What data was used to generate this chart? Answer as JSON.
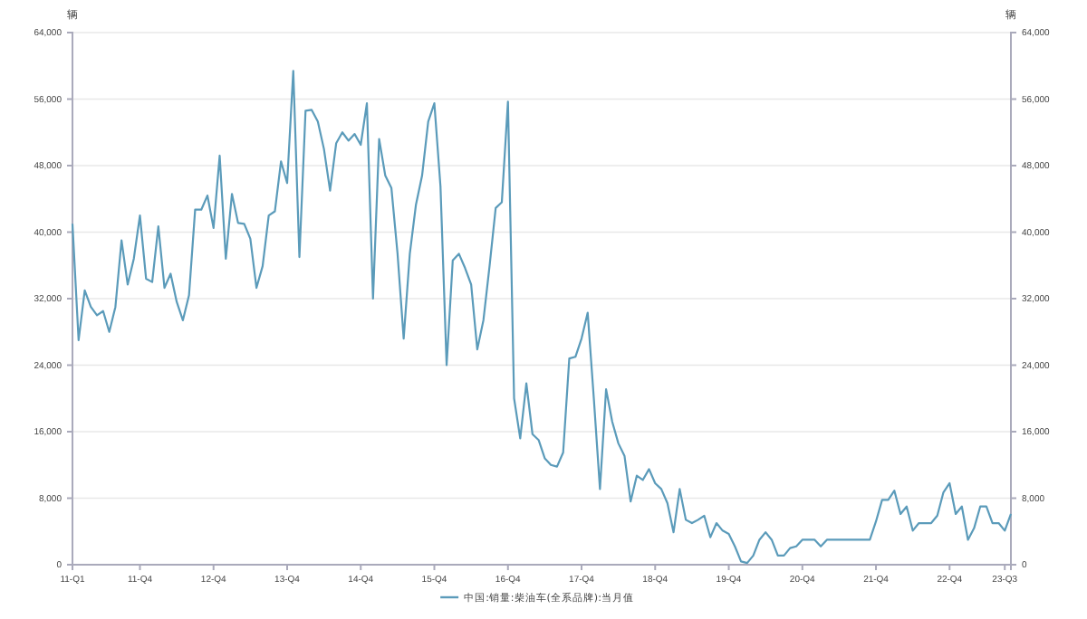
{
  "chart_data": {
    "type": "line",
    "categories": [
      "11-Q1",
      null,
      null,
      null,
      null,
      null,
      null,
      null,
      null,
      null,
      null,
      "11-Q4",
      null,
      null,
      null,
      null,
      null,
      null,
      null,
      null,
      null,
      null,
      null,
      "12-Q4",
      null,
      null,
      null,
      null,
      null,
      null,
      null,
      null,
      null,
      null,
      null,
      "13-Q4",
      null,
      null,
      null,
      null,
      null,
      null,
      null,
      null,
      null,
      null,
      null,
      "14-Q4",
      null,
      null,
      null,
      null,
      null,
      null,
      null,
      null,
      null,
      null,
      null,
      "15-Q4",
      null,
      null,
      null,
      null,
      null,
      null,
      null,
      null,
      null,
      null,
      null,
      "16-Q4",
      null,
      null,
      null,
      null,
      null,
      null,
      null,
      null,
      null,
      null,
      null,
      "17-Q4",
      null,
      null,
      null,
      null,
      null,
      null,
      null,
      null,
      null,
      null,
      null,
      "18-Q4",
      null,
      null,
      null,
      null,
      null,
      null,
      null,
      null,
      null,
      null,
      null,
      "19-Q4",
      null,
      null,
      null,
      null,
      null,
      null,
      null,
      null,
      null,
      null,
      null,
      "20-Q4",
      null,
      null,
      null,
      null,
      null,
      null,
      null,
      null,
      null,
      null,
      null,
      "21-Q4",
      null,
      null,
      null,
      null,
      null,
      null,
      null,
      null,
      null,
      null,
      null,
      "22-Q4",
      null,
      null,
      null,
      null,
      null,
      null,
      null,
      null,
      "23-Q3",
      null
    ],
    "series": [
      {
        "name": "中国:销量:柴油车(全系品牌):当月值",
        "color": "#5b9bba",
        "values": [
          41000,
          27000,
          33000,
          31000,
          30000,
          30500,
          28000,
          31000,
          39000,
          33700,
          36800,
          42000,
          34400,
          34000,
          40700,
          33300,
          35000,
          31600,
          29400,
          32400,
          42700,
          42700,
          44400,
          40500,
          49200,
          36800,
          44600,
          41100,
          41000,
          39200,
          33300,
          35900,
          42000,
          42500,
          48500,
          45900,
          59400,
          37000,
          54600,
          54700,
          53300,
          50000,
          45000,
          50700,
          52000,
          51000,
          51800,
          50500,
          55500,
          32000,
          51200,
          46800,
          45300,
          37400,
          27200,
          37400,
          43300,
          46800,
          53300,
          55500,
          45500,
          24000,
          36600,
          37400,
          35700,
          33700,
          25900,
          29400,
          35900,
          42900,
          43600,
          55700,
          20000,
          15200,
          21800,
          15700,
          15000,
          12800,
          12000,
          11800,
          13500,
          24800,
          25000,
          27200,
          30300,
          20000,
          9100,
          21100,
          17200,
          14600,
          13100,
          7600,
          10700,
          10200,
          11500,
          9800,
          9100,
          7400,
          3900,
          9100,
          5400,
          5000,
          5400,
          5900,
          3300,
          5000,
          4100,
          3700,
          2200,
          400,
          200,
          1100,
          3000,
          3900,
          3000,
          1100,
          1100,
          2000,
          2200,
          3000,
          3000,
          3000,
          2200,
          3000,
          3000,
          3000,
          3000,
          3000,
          3000,
          3000,
          3000,
          5200,
          7800,
          7800,
          8900,
          6100,
          7000,
          4100,
          5000,
          5000,
          5000,
          5900,
          8700,
          9800,
          6100,
          7000,
          3000,
          4400,
          7000,
          7000,
          5000,
          5000,
          4100,
          6100
        ]
      }
    ],
    "ylabel": "辆",
    "ylim": [
      0,
      64000
    ],
    "yticks": [
      {
        "value": 0,
        "label": "0"
      },
      {
        "value": 8000,
        "label": "8,000"
      },
      {
        "value": 16000,
        "label": "16,000"
      },
      {
        "value": 24000,
        "label": "24,000"
      },
      {
        "value": 32000,
        "label": "32,000"
      },
      {
        "value": 40000,
        "label": "40,000"
      },
      {
        "value": 48000,
        "label": "48,000"
      },
      {
        "value": 56000,
        "label": "56,000"
      },
      {
        "value": 64000,
        "label": "64,000"
      }
    ],
    "y2label": "辆",
    "y2lim": [
      0,
      64000
    ],
    "y2ticks": [
      {
        "value": 0,
        "label": "0"
      },
      {
        "value": 8000,
        "label": "8,000"
      },
      {
        "value": 16000,
        "label": "16,000"
      },
      {
        "value": 24000,
        "label": "24,000"
      },
      {
        "value": 32000,
        "label": "32,000"
      },
      {
        "value": 40000,
        "label": "40,000"
      },
      {
        "value": 48000,
        "label": "48,000"
      },
      {
        "value": 56000,
        "label": "56,000"
      },
      {
        "value": 64000,
        "label": "64,000"
      }
    ],
    "grid": "y",
    "legend": "bottom",
    "line_style": "solid"
  }
}
